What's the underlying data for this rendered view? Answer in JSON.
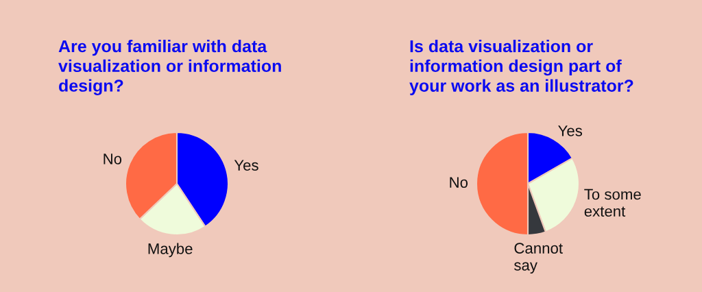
{
  "chart_data": [
    {
      "type": "pie",
      "title": "Are you familiar with data\nvisualization or information\ndesign?",
      "categories": [
        "Yes",
        "Maybe",
        "No"
      ],
      "values": [
        40.7,
        22.2,
        37.1
      ],
      "colors": [
        "#0000ff",
        "#effbdb",
        "#ff6a45"
      ],
      "legend": false
    },
    {
      "type": "pie",
      "title": "Is data visualization or\ninformation design part of\nyour work as an illustrator?",
      "categories": [
        "Yes",
        "To some\nextent",
        "Cannot\nsay",
        "No"
      ],
      "values": [
        16.7,
        27.7,
        5.6,
        50.0
      ],
      "colors": [
        "#0000ff",
        "#effbdb",
        "#35383d",
        "#ff6a45"
      ],
      "legend": false
    }
  ]
}
